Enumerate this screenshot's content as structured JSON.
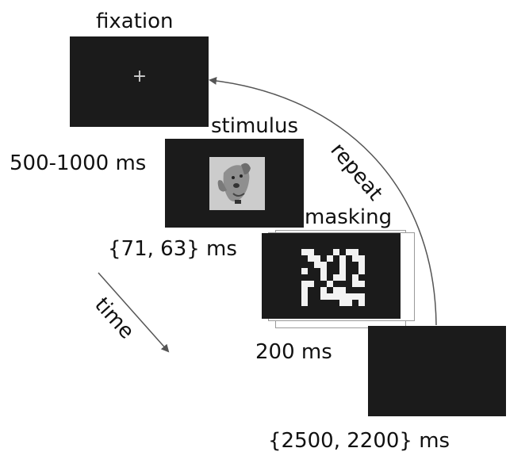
{
  "diagram": {
    "frames": [
      {
        "name": "fixation",
        "label": "fixation",
        "duration": "500-1000 ms",
        "content": "+"
      },
      {
        "name": "stimulus",
        "label": "stimulus",
        "duration": "{71, 63} ms",
        "content": "dog-image"
      },
      {
        "name": "masking",
        "label": "masking",
        "duration": "200 ms",
        "content": "noise-mask"
      },
      {
        "name": "blank",
        "label": "",
        "duration": "{2500, 2200} ms",
        "content": ""
      }
    ],
    "repeat_label": "repeat",
    "time_label": "time",
    "colors": {
      "screen": "#1b1b1b",
      "text": "#111111",
      "arrow": "#555555"
    }
  }
}
